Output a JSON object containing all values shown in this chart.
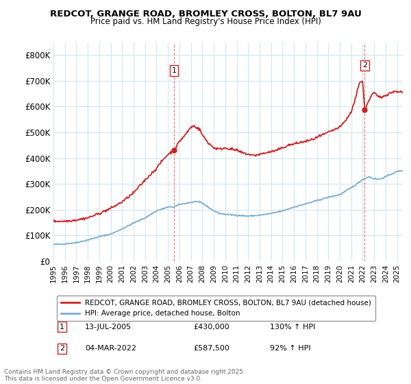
{
  "title1": "REDCOT, GRANGE ROAD, BROMLEY CROSS, BOLTON, BL7 9AU",
  "title2": "Price paid vs. HM Land Registry's House Price Index (HPI)",
  "ylim": [
    0,
    850000
  ],
  "yticks": [
    0,
    100000,
    200000,
    300000,
    400000,
    500000,
    600000,
    700000,
    800000
  ],
  "ytick_labels": [
    "£0",
    "£100K",
    "£200K",
    "£300K",
    "£400K",
    "£500K",
    "£600K",
    "£700K",
    "£800K"
  ],
  "hpi_color": "#7aadd4",
  "price_color": "#cc2222",
  "vline_color": "#cc2222",
  "background_color": "#ffffff",
  "grid_color": "#d0e4f0",
  "legend_label_price": "REDCOT, GRANGE ROAD, BROMLEY CROSS, BOLTON, BL7 9AU (detached house)",
  "legend_label_hpi": "HPI: Average price, detached house, Bolton",
  "annotation1_label": "1",
  "annotation1_date": "13-JUL-2005",
  "annotation1_price": "£430,000",
  "annotation1_hpi": "130% ↑ HPI",
  "annotation2_label": "2",
  "annotation2_date": "04-MAR-2022",
  "annotation2_price": "£587,500",
  "annotation2_hpi": "92% ↑ HPI",
  "footnote": "Contains HM Land Registry data © Crown copyright and database right 2025.\nThis data is licensed under the Open Government Licence v3.0.",
  "marker1_x": 2005.53,
  "marker1_y": 430000,
  "marker2_x": 2022.17,
  "marker2_y": 587500,
  "xmin": 1995,
  "xmax": 2025.5
}
